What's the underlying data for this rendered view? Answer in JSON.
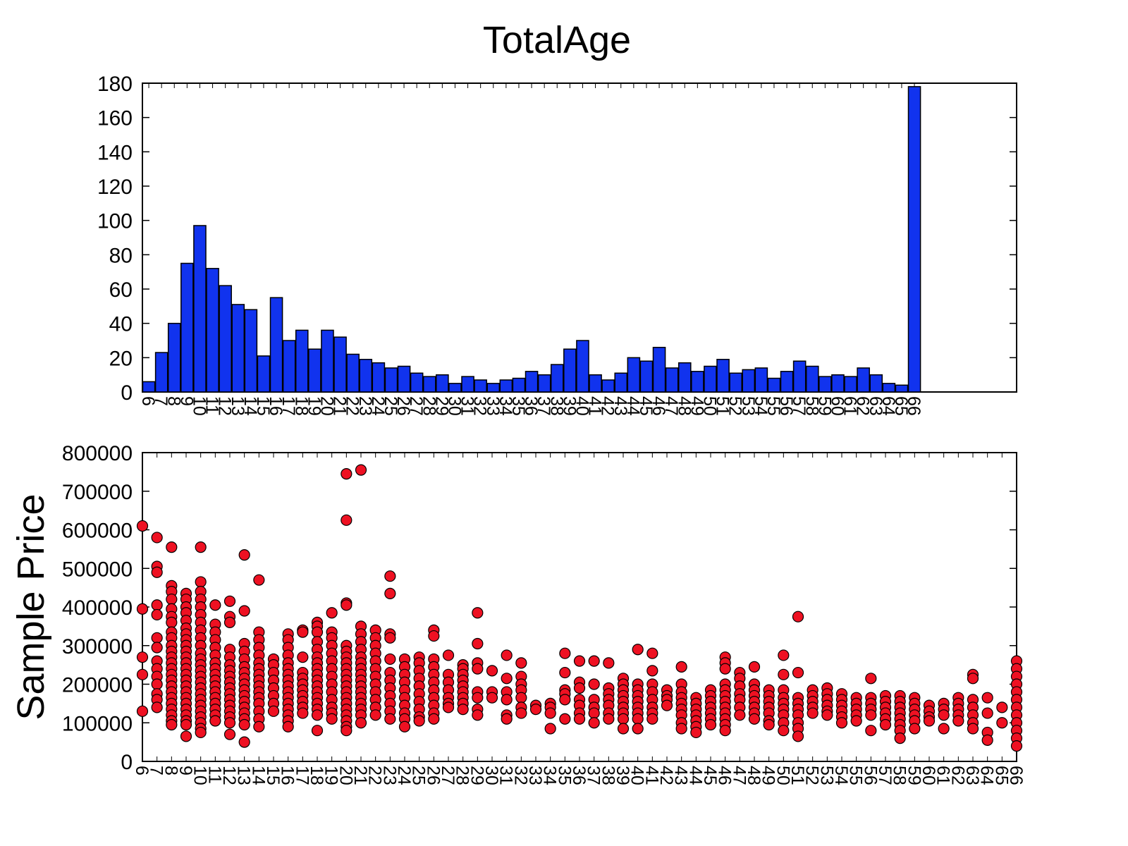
{
  "figure": {
    "title": "TotalAge",
    "colors": {
      "bar_fill": "#1133ee",
      "point_fill": "#ee1122",
      "stroke": "#000000"
    }
  },
  "chart_data": [
    {
      "type": "bar",
      "title": "TotalAge",
      "xlabel": "",
      "ylabel": "",
      "ylim": [
        0,
        180
      ],
      "yticks": [
        0,
        20,
        40,
        60,
        80,
        100,
        120,
        140,
        160,
        180
      ],
      "grid": false,
      "legend": "none",
      "categories": [
        "6",
        "7",
        "8",
        "9",
        "10",
        "11",
        "12",
        "13",
        "14",
        "15",
        "16",
        "17",
        "18",
        "19",
        "20",
        "21",
        "22",
        "23",
        "24",
        "25",
        "26",
        "27",
        "28",
        "29",
        "30",
        "31",
        "32",
        "33",
        "34",
        "35",
        "36",
        "37",
        "38",
        "39",
        "40",
        "41",
        "42",
        "43",
        "44",
        "45",
        "46",
        "47",
        "48",
        "49",
        "50",
        "51",
        "52",
        "53",
        "54",
        "55",
        "56",
        "57",
        "58",
        "59",
        "60",
        "61",
        "62",
        "63",
        "64",
        "65",
        "66"
      ],
      "values": [
        6,
        23,
        40,
        75,
        97,
        72,
        62,
        51,
        48,
        21,
        55,
        30,
        36,
        25,
        36,
        32,
        22,
        19,
        17,
        14,
        15,
        11,
        9,
        10,
        5,
        9,
        7,
        5,
        7,
        8,
        12,
        10,
        16,
        25,
        30,
        10,
        7,
        11,
        20,
        18,
        26,
        14,
        17,
        12,
        15,
        19,
        11,
        13,
        14,
        8,
        12,
        18,
        15,
        9,
        10,
        9,
        14,
        10,
        5,
        4,
        178
      ]
    },
    {
      "type": "scatter",
      "title": "",
      "xlabel": "",
      "ylabel": "Sample Price",
      "ylim": [
        0,
        800000
      ],
      "yticks": [
        0,
        100000,
        200000,
        300000,
        400000,
        500000,
        600000,
        700000,
        800000
      ],
      "grid": false,
      "legend": "none",
      "categories": [
        "6",
        "7",
        "8",
        "9",
        "10",
        "11",
        "12",
        "13",
        "14",
        "15",
        "16",
        "17",
        "18",
        "19",
        "20",
        "21",
        "22",
        "23",
        "24",
        "25",
        "26",
        "27",
        "28",
        "29",
        "30",
        "31",
        "32",
        "33",
        "34",
        "35",
        "36",
        "37",
        "38",
        "39",
        "40",
        "41",
        "42",
        "43",
        "44",
        "45",
        "46",
        "47",
        "48",
        "49",
        "50",
        "51",
        "52",
        "53",
        "54",
        "55",
        "56",
        "57",
        "58",
        "59",
        "60",
        "61",
        "62",
        "63",
        "64",
        "65",
        "66"
      ],
      "series": [
        {
          "x": "6",
          "values": [
            610000,
            395000,
            270000,
            225000,
            130000
          ]
        },
        {
          "x": "7",
          "values": [
            580000,
            505000,
            490000,
            405000,
            380000,
            320000,
            295000,
            260000,
            240000,
            220000,
            200000,
            175000,
            160000,
            140000
          ]
        },
        {
          "x": "8",
          "values": [
            555000,
            455000,
            440000,
            420000,
            395000,
            375000,
            360000,
            335000,
            320000,
            300000,
            285000,
            270000,
            255000,
            240000,
            225000,
            210000,
            195000,
            180000,
            165000,
            150000,
            135000,
            120000,
            105000,
            95000
          ]
        },
        {
          "x": "9",
          "values": [
            435000,
            420000,
            400000,
            385000,
            365000,
            345000,
            330000,
            315000,
            300000,
            285000,
            270000,
            255000,
            240000,
            225000,
            210000,
            195000,
            180000,
            165000,
            150000,
            135000,
            120000,
            105000,
            95000,
            65000
          ]
        },
        {
          "x": "10",
          "values": [
            555000,
            465000,
            440000,
            420000,
            400000,
            380000,
            360000,
            340000,
            320000,
            300000,
            280000,
            265000,
            250000,
            235000,
            220000,
            205000,
            190000,
            175000,
            160000,
            145000,
            130000,
            115000,
            100000,
            85000,
            75000
          ]
        },
        {
          "x": "11",
          "values": [
            405000,
            355000,
            335000,
            315000,
            295000,
            275000,
            255000,
            240000,
            225000,
            210000,
            195000,
            180000,
            165000,
            150000,
            135000,
            120000,
            105000
          ]
        },
        {
          "x": "12",
          "values": [
            415000,
            375000,
            360000,
            290000,
            270000,
            250000,
            235000,
            220000,
            205000,
            190000,
            175000,
            160000,
            145000,
            130000,
            115000,
            100000,
            70000
          ]
        },
        {
          "x": "13",
          "values": [
            535000,
            390000,
            305000,
            285000,
            265000,
            245000,
            230000,
            215000,
            200000,
            185000,
            170000,
            155000,
            140000,
            125000,
            110000,
            95000,
            50000
          ]
        },
        {
          "x": "14",
          "values": [
            470000,
            335000,
            315000,
            295000,
            275000,
            255000,
            240000,
            225000,
            210000,
            195000,
            180000,
            165000,
            150000,
            130000,
            110000,
            90000
          ]
        },
        {
          "x": "15",
          "values": [
            265000,
            250000,
            230000,
            210000,
            190000,
            170000,
            150000,
            130000
          ]
        },
        {
          "x": "16",
          "values": [
            330000,
            315000,
            295000,
            275000,
            255000,
            240000,
            225000,
            210000,
            195000,
            180000,
            165000,
            150000,
            135000,
            120000,
            105000,
            90000
          ]
        },
        {
          "x": "17",
          "values": [
            340000,
            335000,
            270000,
            230000,
            215000,
            200000,
            185000,
            170000,
            155000,
            140000,
            125000
          ]
        },
        {
          "x": "18",
          "values": [
            360000,
            350000,
            335000,
            310000,
            290000,
            270000,
            255000,
            240000,
            225000,
            210000,
            195000,
            180000,
            165000,
            150000,
            135000,
            120000,
            80000
          ]
        },
        {
          "x": "19",
          "values": [
            385000,
            335000,
            320000,
            300000,
            280000,
            260000,
            240000,
            220000,
            200000,
            180000,
            160000,
            140000,
            125000,
            110000
          ]
        },
        {
          "x": "20",
          "values": [
            745000,
            625000,
            410000,
            405000,
            300000,
            285000,
            270000,
            255000,
            240000,
            225000,
            210000,
            195000,
            180000,
            165000,
            150000,
            135000,
            120000,
            105000,
            90000,
            80000
          ]
        },
        {
          "x": "21",
          "values": [
            755000,
            350000,
            330000,
            310000,
            290000,
            270000,
            255000,
            240000,
            225000,
            210000,
            195000,
            180000,
            165000,
            150000,
            135000,
            120000,
            100000
          ]
        },
        {
          "x": "22",
          "values": [
            340000,
            320000,
            300000,
            280000,
            260000,
            240000,
            220000,
            200000,
            180000,
            160000,
            140000,
            120000
          ]
        },
        {
          "x": "23",
          "values": [
            480000,
            435000,
            330000,
            320000,
            265000,
            230000,
            210000,
            190000,
            170000,
            150000,
            130000,
            110000
          ]
        },
        {
          "x": "24",
          "values": [
            265000,
            245000,
            225000,
            205000,
            185000,
            165000,
            145000,
            125000,
            110000,
            90000
          ]
        },
        {
          "x": "25",
          "values": [
            270000,
            255000,
            235000,
            215000,
            195000,
            175000,
            155000,
            135000,
            115000,
            105000
          ]
        },
        {
          "x": "26",
          "values": [
            340000,
            325000,
            265000,
            245000,
            225000,
            205000,
            185000,
            165000,
            145000,
            125000,
            110000
          ]
        },
        {
          "x": "27",
          "values": [
            275000,
            225000,
            205000,
            185000,
            165000,
            150000,
            140000
          ]
        },
        {
          "x": "28",
          "values": [
            250000,
            240000,
            225000,
            210000,
            195000,
            180000,
            165000,
            150000,
            135000
          ]
        },
        {
          "x": "29",
          "values": [
            385000,
            305000,
            255000,
            240000,
            180000,
            165000,
            135000,
            120000
          ]
        },
        {
          "x": "30",
          "values": [
            235000,
            180000,
            165000
          ]
        },
        {
          "x": "31",
          "values": [
            275000,
            215000,
            180000,
            160000,
            120000,
            110000
          ]
        },
        {
          "x": "32",
          "values": [
            255000,
            220000,
            200000,
            185000,
            165000,
            140000,
            125000
          ]
        },
        {
          "x": "33",
          "values": [
            145000,
            135000
          ]
        },
        {
          "x": "34",
          "values": [
            150000,
            140000,
            125000,
            85000
          ]
        },
        {
          "x": "35",
          "values": [
            280000,
            230000,
            185000,
            175000,
            160000,
            110000
          ]
        },
        {
          "x": "36",
          "values": [
            260000,
            205000,
            190000,
            160000,
            145000,
            125000,
            110000
          ]
        },
        {
          "x": "37",
          "values": [
            260000,
            200000,
            160000,
            140000,
            125000,
            100000
          ]
        },
        {
          "x": "38",
          "values": [
            255000,
            190000,
            175000,
            160000,
            145000,
            125000,
            110000
          ]
        },
        {
          "x": "39",
          "values": [
            215000,
            200000,
            185000,
            170000,
            155000,
            140000,
            125000,
            110000,
            85000
          ]
        },
        {
          "x": "40",
          "values": [
            290000,
            200000,
            185000,
            170000,
            155000,
            140000,
            125000,
            110000,
            85000
          ]
        },
        {
          "x": "41",
          "values": [
            280000,
            235000,
            200000,
            180000,
            160000,
            140000,
            125000,
            110000
          ]
        },
        {
          "x": "42",
          "values": [
            185000,
            170000,
            160000,
            145000
          ]
        },
        {
          "x": "43",
          "values": [
            245000,
            200000,
            180000,
            165000,
            150000,
            135000,
            120000,
            100000,
            85000
          ]
        },
        {
          "x": "44",
          "values": [
            165000,
            150000,
            135000,
            120000,
            105000,
            90000,
            75000
          ]
        },
        {
          "x": "45",
          "values": [
            185000,
            170000,
            155000,
            140000,
            125000,
            110000,
            95000
          ]
        },
        {
          "x": "46",
          "values": [
            270000,
            255000,
            240000,
            200000,
            185000,
            170000,
            155000,
            140000,
            125000,
            110000,
            95000,
            80000
          ]
        },
        {
          "x": "47",
          "values": [
            230000,
            215000,
            195000,
            175000,
            160000,
            140000,
            120000
          ]
        },
        {
          "x": "48",
          "values": [
            245000,
            200000,
            185000,
            170000,
            155000,
            140000,
            125000,
            110000
          ]
        },
        {
          "x": "49",
          "values": [
            185000,
            170000,
            155000,
            140000,
            125000,
            105000,
            95000
          ]
        },
        {
          "x": "50",
          "values": [
            275000,
            225000,
            185000,
            165000,
            150000,
            135000,
            120000,
            100000,
            80000
          ]
        },
        {
          "x": "51",
          "values": [
            375000,
            230000,
            165000,
            150000,
            135000,
            120000,
            100000,
            85000,
            65000
          ]
        },
        {
          "x": "52",
          "values": [
            185000,
            170000,
            155000,
            140000,
            125000
          ]
        },
        {
          "x": "53",
          "values": [
            190000,
            175000,
            160000,
            145000,
            130000,
            120000
          ]
        },
        {
          "x": "54",
          "values": [
            175000,
            160000,
            145000,
            130000,
            115000,
            100000
          ]
        },
        {
          "x": "55",
          "values": [
            165000,
            150000,
            135000,
            120000,
            105000
          ]
        },
        {
          "x": "56",
          "values": [
            215000,
            165000,
            150000,
            135000,
            120000,
            80000
          ]
        },
        {
          "x": "57",
          "values": [
            170000,
            155000,
            140000,
            125000,
            110000,
            95000
          ]
        },
        {
          "x": "58",
          "values": [
            170000,
            155000,
            140000,
            125000,
            110000,
            95000,
            80000,
            60000
          ]
        },
        {
          "x": "59",
          "values": [
            165000,
            150000,
            135000,
            120000,
            105000,
            85000
          ]
        },
        {
          "x": "60",
          "values": [
            145000,
            130000,
            115000,
            105000
          ]
        },
        {
          "x": "61",
          "values": [
            150000,
            135000,
            120000,
            85000
          ]
        },
        {
          "x": "62",
          "values": [
            165000,
            150000,
            135000,
            120000,
            105000
          ]
        },
        {
          "x": "63",
          "values": [
            225000,
            215000,
            160000,
            140000,
            120000,
            100000,
            85000
          ]
        },
        {
          "x": "64",
          "values": [
            165000,
            125000,
            75000,
            55000
          ]
        },
        {
          "x": "65",
          "values": [
            140000,
            100000
          ]
        },
        {
          "x": "66",
          "values": [
            260000,
            240000,
            220000,
            200000,
            180000,
            160000,
            140000,
            120000,
            100000,
            80000,
            60000,
            40000
          ]
        }
      ]
    }
  ]
}
